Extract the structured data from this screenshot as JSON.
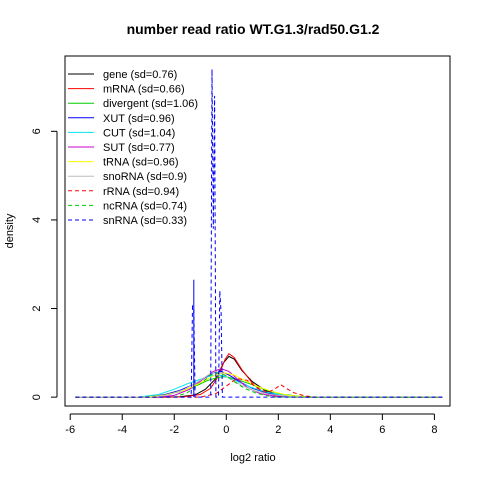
{
  "chart_data": {
    "type": "line",
    "title": "number read ratio WT.G1.3/rad50.G1.2",
    "xlabel": "log2 ratio",
    "ylabel": "density",
    "xlim": [
      -6.2,
      8.6
    ],
    "ylim": [
      -0.2,
      7.7
    ],
    "x_ticks": [
      -6,
      -4,
      -2,
      0,
      2,
      4,
      6,
      8
    ],
    "y_ticks": [
      0,
      2,
      4,
      6
    ],
    "grid": false,
    "legend_position": "top-left",
    "series": [
      {
        "name": "gene (sd=0.76)",
        "color": "#000000",
        "dashed": false,
        "x": [
          -5.8,
          -2.4,
          -1.8,
          -1.2,
          -0.8,
          -0.4,
          -0.1,
          0.1,
          0.3,
          0.6,
          1.0,
          1.5,
          2.0,
          2.6,
          3.2,
          8.3
        ],
        "y": [
          0,
          0,
          0.01,
          0.05,
          0.18,
          0.42,
          0.78,
          0.92,
          0.86,
          0.6,
          0.35,
          0.15,
          0.05,
          0.01,
          0,
          0
        ]
      },
      {
        "name": "mRNA (sd=0.66)",
        "color": "#ff0000",
        "dashed": false,
        "x": [
          -5.8,
          -2.2,
          -1.6,
          -1.0,
          -0.6,
          -0.3,
          -0.05,
          0.1,
          0.3,
          0.6,
          1.0,
          1.4,
          1.9,
          2.5,
          3.0,
          8.3
        ],
        "y": [
          0,
          0,
          0.01,
          0.06,
          0.2,
          0.48,
          0.85,
          0.98,
          0.9,
          0.62,
          0.32,
          0.12,
          0.03,
          0.01,
          0,
          0
        ]
      },
      {
        "name": "divergent (sd=1.06)",
        "color": "#00cd00",
        "dashed": false,
        "x": [
          -5.8,
          -3.4,
          -2.6,
          -1.8,
          -1.2,
          -0.7,
          -0.3,
          0.0,
          0.4,
          0.9,
          1.5,
          2.1,
          2.8,
          3.5,
          8.3
        ],
        "y": [
          0,
          0,
          0.03,
          0.12,
          0.25,
          0.38,
          0.45,
          0.46,
          0.4,
          0.3,
          0.17,
          0.07,
          0.02,
          0,
          0
        ]
      },
      {
        "name": "XUT (sd=0.96)",
        "color": "#0000ff",
        "dashed": false,
        "x": [
          -5.8,
          -3.2,
          -2.4,
          -1.8,
          -1.2,
          -0.8,
          -0.5,
          -0.2,
          0.1,
          0.5,
          1.0,
          1.6,
          2.2,
          3.0,
          8.3
        ],
        "y": [
          0,
          0,
          0.05,
          0.15,
          0.3,
          0.45,
          0.55,
          0.58,
          0.5,
          0.35,
          0.2,
          0.09,
          0.03,
          0,
          0
        ]
      },
      {
        "name": "CUT (sd=1.04)",
        "color": "#00e5ee",
        "dashed": false,
        "x": [
          -5.8,
          -3.4,
          -2.6,
          -2.0,
          -1.5,
          -1.0,
          -0.6,
          -0.3,
          0.0,
          0.4,
          0.9,
          1.5,
          2.1,
          2.8,
          3.5,
          8.3
        ],
        "y": [
          0,
          0,
          0.06,
          0.18,
          0.3,
          0.4,
          0.48,
          0.5,
          0.46,
          0.36,
          0.23,
          0.12,
          0.05,
          0.01,
          0,
          0
        ]
      },
      {
        "name": "SUT (sd=0.77)",
        "color": "#cd00cd",
        "dashed": false,
        "x": [
          -5.8,
          -2.6,
          -2.0,
          -1.4,
          -0.9,
          -0.5,
          -0.2,
          0.1,
          0.4,
          0.8,
          1.3,
          1.9,
          2.6,
          8.3
        ],
        "y": [
          0,
          0,
          0.04,
          0.18,
          0.4,
          0.58,
          0.64,
          0.58,
          0.42,
          0.22,
          0.08,
          0.02,
          0,
          0
        ]
      },
      {
        "name": "tRNA (sd=0.96)",
        "color": "#ffff00",
        "dashed": false,
        "x": [
          -5.8,
          -3.2,
          -2.4,
          -1.6,
          -1.0,
          -0.5,
          -0.1,
          0.3,
          0.7,
          1.2,
          1.8,
          2.4,
          3.2,
          8.3
        ],
        "y": [
          0,
          0,
          0.04,
          0.16,
          0.32,
          0.48,
          0.55,
          0.5,
          0.38,
          0.24,
          0.12,
          0.04,
          0,
          0
        ]
      },
      {
        "name": "snoRNA (sd=0.9)",
        "color": "#bebebe",
        "dashed": false,
        "x": [
          -5.8,
          -2.8,
          -2.2,
          -1.6,
          -1.1,
          -0.7,
          -0.4,
          -0.1,
          0.2,
          0.6,
          1.1,
          1.7,
          2.4,
          3.0,
          8.3
        ],
        "y": [
          0,
          0,
          0.05,
          0.18,
          0.34,
          0.5,
          0.58,
          0.52,
          0.4,
          0.26,
          0.14,
          0.06,
          0.02,
          0,
          0
        ]
      },
      {
        "name": "rRNA (sd=0.94)",
        "color": "#ff0000",
        "dashed": true,
        "x": [
          -5.8,
          -1.0,
          -0.4,
          0.0,
          0.4,
          0.8,
          1.2,
          1.6,
          1.9,
          2.1,
          2.3,
          2.6,
          3.0,
          3.4,
          8.3
        ],
        "y": [
          0,
          0,
          0.08,
          0.25,
          0.42,
          0.38,
          0.2,
          0.1,
          0.2,
          0.28,
          0.2,
          0.1,
          0.03,
          0,
          0
        ]
      },
      {
        "name": "ncRNA (sd=0.74)",
        "color": "#00cd00",
        "dashed": true,
        "x": [
          -5.8,
          -2.0,
          -1.5,
          -1.0,
          -0.6,
          -0.3,
          0.0,
          0.3,
          0.7,
          1.2,
          1.8,
          8.3
        ],
        "y": [
          0,
          0,
          0.1,
          0.3,
          0.5,
          0.55,
          0.48,
          0.35,
          0.2,
          0.08,
          0,
          0
        ]
      },
      {
        "name": "snRNA (sd=0.33)",
        "color": "#0000ff",
        "dashed": true,
        "x": [
          -5.8,
          -1.35,
          -1.3,
          -1.25,
          -1.2,
          -0.6,
          -0.55,
          -0.5,
          -0.45,
          -0.4,
          -0.3,
          -0.25,
          -0.2,
          -0.15,
          8.3
        ],
        "y": [
          0,
          0,
          2.05,
          2.0,
          0,
          0,
          7.4,
          3.8,
          6.8,
          0,
          0,
          2.4,
          1.9,
          0,
          0
        ]
      },
      {
        "name": "",
        "color": "#0000ff",
        "dashed": false,
        "x": [
          -1.25,
          -1.25
        ],
        "y": [
          0,
          2.65
        ]
      }
    ]
  }
}
